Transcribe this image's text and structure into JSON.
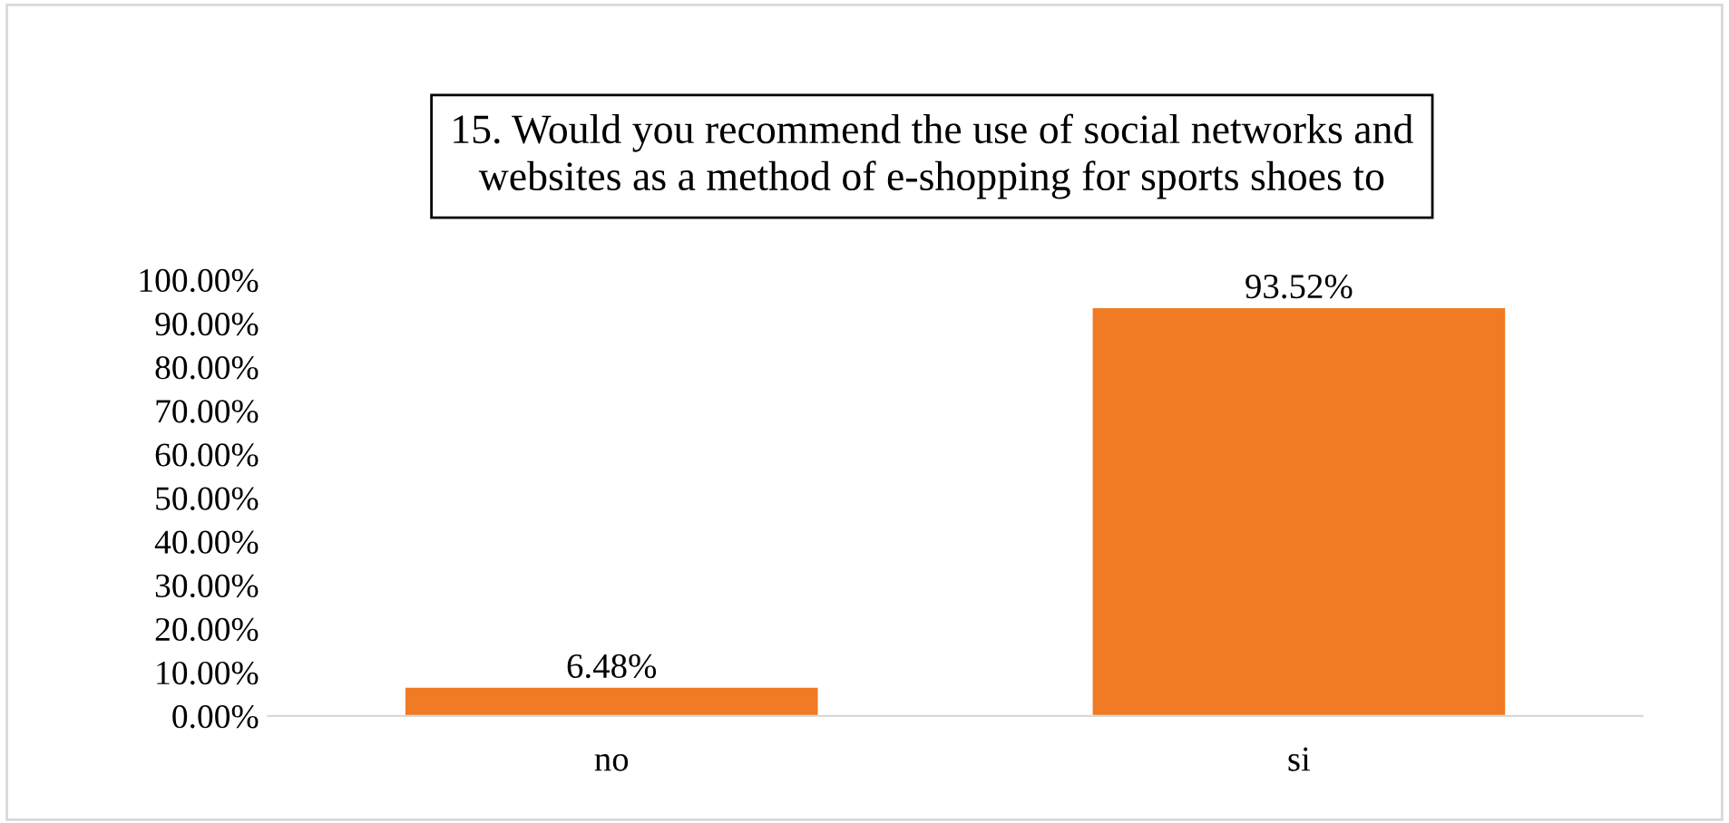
{
  "chart_data": {
    "type": "bar",
    "title": "15. Would you recommend the use of social networks and\nwebsites as a method of e-shopping for sports shoes to",
    "categories": [
      "no",
      "si"
    ],
    "values": [
      6.48,
      93.52
    ],
    "color": "#f07b24",
    "value_labels": [
      "6.48%",
      "93.52%"
    ],
    "ylim": [
      0,
      100
    ],
    "yticks": [
      {
        "value": 0,
        "label": "0.00%"
      },
      {
        "value": 10,
        "label": "10.00%"
      },
      {
        "value": 20,
        "label": "20.00%"
      },
      {
        "value": 30,
        "label": "30.00%"
      },
      {
        "value": 40,
        "label": "40.00%"
      },
      {
        "value": 50,
        "label": "50.00%"
      },
      {
        "value": 60,
        "label": "60.00%"
      },
      {
        "value": 70,
        "label": "70.00%"
      },
      {
        "value": 80,
        "label": "80.00%"
      },
      {
        "value": 90,
        "label": "90.00%"
      },
      {
        "value": 100,
        "label": "100.00%"
      }
    ],
    "grid": false,
    "legend": false
  }
}
